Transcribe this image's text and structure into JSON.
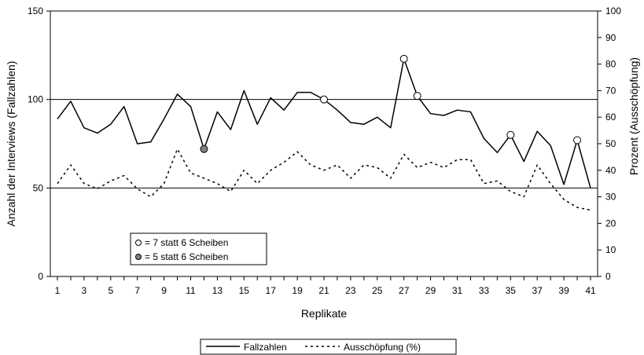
{
  "chart_data": {
    "type": "line",
    "xlabel": "Replikate",
    "ylabel_left": "Anzahl der Interviews (Fallzahlen)",
    "ylabel_right": "Prozent (Ausschöpfung)",
    "x": [
      1,
      2,
      3,
      4,
      5,
      6,
      7,
      8,
      9,
      10,
      11,
      12,
      13,
      14,
      15,
      16,
      17,
      18,
      19,
      20,
      21,
      22,
      23,
      24,
      25,
      26,
      27,
      28,
      29,
      30,
      31,
      32,
      33,
      34,
      35,
      36,
      37,
      38,
      39,
      40,
      41
    ],
    "x_tick_labels": [
      "1",
      "3",
      "5",
      "7",
      "9",
      "11",
      "13",
      "15",
      "17",
      "19",
      "21",
      "23",
      "25",
      "27",
      "29",
      "31",
      "33",
      "35",
      "37",
      "39",
      "41"
    ],
    "ylim_left": [
      0,
      150
    ],
    "y_ticks_left": [
      "0",
      "50",
      "100",
      "150"
    ],
    "ylim_right": [
      0,
      100
    ],
    "y_ticks_right": [
      "0",
      "10",
      "20",
      "30",
      "40",
      "50",
      "60",
      "70",
      "80",
      "90",
      "100"
    ],
    "gridlines_left": [
      50,
      100
    ],
    "series": [
      {
        "name": "Fallzahlen",
        "axis": "left",
        "style": "solid",
        "values": [
          89,
          99,
          84,
          81,
          86,
          96,
          75,
          76,
          89,
          103,
          96,
          72,
          93,
          83,
          105,
          86,
          101,
          94,
          104,
          104,
          100,
          94,
          87,
          86,
          90,
          84,
          123,
          102,
          92,
          91,
          94,
          93,
          78,
          70,
          80,
          65,
          82,
          74,
          52,
          77,
          50
        ]
      },
      {
        "name": "Ausschöpfung (%)",
        "axis": "right",
        "style": "dashed",
        "values": [
          35,
          42,
          35,
          33,
          36,
          38,
          33,
          30,
          35,
          48,
          39,
          37,
          35,
          32,
          40,
          35,
          40,
          43,
          47,
          42,
          40,
          42,
          37,
          42,
          41,
          37,
          46,
          41,
          43,
          41,
          44,
          44,
          35,
          36,
          32,
          30,
          42,
          35,
          29,
          26,
          25
        ]
      }
    ],
    "markers": [
      {
        "x": 12,
        "value": 72,
        "type": "filled"
      },
      {
        "x": 21,
        "value": 100,
        "type": "open"
      },
      {
        "x": 27,
        "value": 123,
        "type": "open"
      },
      {
        "x": 28,
        "value": 102,
        "type": "open"
      },
      {
        "x": 35,
        "value": 80,
        "type": "open"
      },
      {
        "x": 40,
        "value": 77,
        "type": "open"
      }
    ],
    "marker_legend": [
      {
        "type": "open",
        "label": "= 7 statt 6 Scheiben"
      },
      {
        "type": "filled",
        "label": "= 5 statt 6 Scheiben"
      }
    ],
    "legend_position": "bottom",
    "colors": {
      "line": "#000000",
      "open_marker_fill": "#ffffff",
      "filled_marker_fill": "#808080"
    }
  }
}
